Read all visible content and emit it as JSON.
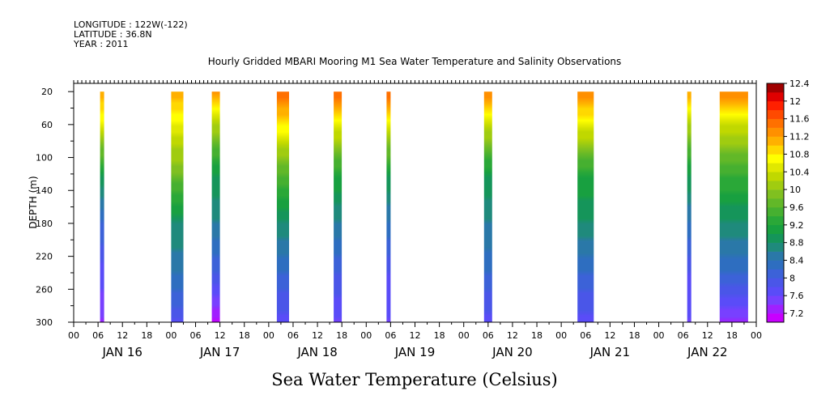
{
  "header": {
    "longitude": "LONGITUDE : 122W(-122)",
    "latitude": "LATITUDE : 36.8N",
    "year": "YEAR : 2011"
  },
  "chart_data": {
    "type": "heatmap",
    "title": "Hourly Gridded MBARI Mooring M1 Sea Water Temperature and Salinity Observations",
    "xlabel": "Sea Water Temperature (Celsius)",
    "ylabel": "DEPTH (m)",
    "y_ticks": [
      20,
      60,
      100,
      140,
      180,
      220,
      260,
      300
    ],
    "ylim": [
      300,
      10
    ],
    "x_range_hours": [
      0,
      168
    ],
    "x_hour_ticks": [
      "00",
      "06",
      "12",
      "18",
      "00",
      "06",
      "12",
      "18",
      "00",
      "06",
      "12",
      "18",
      "00",
      "06",
      "12",
      "18",
      "00",
      "06",
      "12",
      "18",
      "00",
      "06",
      "12",
      "18",
      "00",
      "06",
      "12",
      "18",
      "00"
    ],
    "x_day_labels": [
      "JAN 16",
      "JAN 17",
      "JAN 18",
      "JAN 19",
      "JAN 20",
      "JAN 21",
      "JAN 22"
    ],
    "colorbar": {
      "levels": [
        7.2,
        7.4,
        7.6,
        7.8,
        8.0,
        8.2,
        8.4,
        8.6,
        8.8,
        9.0,
        9.2,
        9.4,
        9.6,
        9.8,
        10.0,
        10.2,
        10.4,
        10.6,
        10.8,
        11.0,
        11.2,
        11.4,
        11.6,
        11.8,
        12.0,
        12.2,
        12.4
      ],
      "labels": [
        "12.4",
        "12",
        "11.6",
        "11.2",
        "10.8",
        "10.4",
        "10",
        "9.6",
        "9.2",
        "8.8",
        "8.4",
        "8",
        "7.6",
        "7.2"
      ],
      "colors": [
        "#c800ff",
        "#a020ff",
        "#7840ff",
        "#5a4cf8",
        "#4a56e8",
        "#3c62d8",
        "#2e6ec0",
        "#2a78a8",
        "#1f8a7c",
        "#15955a",
        "#18a040",
        "#2aa838",
        "#46b030",
        "#62b828",
        "#80c020",
        "#a0cc10",
        "#c0d800",
        "#e0e800",
        "#ffff00",
        "#ffd800",
        "#ffb000",
        "#ff9000",
        "#ff7000",
        "#ff4a00",
        "#ff2000",
        "#e00000",
        "#a00000"
      ]
    },
    "series": [
      {
        "start_hour": 6.5,
        "end_hour": 7.5,
        "top": [
          11.4,
          10.8,
          9.2,
          8.4,
          7.9,
          7.6
        ]
      },
      {
        "start_hour": 24.0,
        "end_hour": 27.0,
        "top": [
          11.4,
          10.8,
          10.0,
          9.0,
          8.6,
          8.0
        ]
      },
      {
        "start_hour": 34.0,
        "end_hour": 36.0,
        "top": [
          11.6,
          10.4,
          9.2,
          8.8,
          8.2,
          7.3
        ]
      },
      {
        "start_hour": 50.0,
        "end_hour": 53.0,
        "top": [
          11.8,
          11.0,
          9.8,
          9.0,
          8.4,
          7.9
        ]
      },
      {
        "start_hour": 64.0,
        "end_hour": 66.0,
        "top": [
          11.8,
          10.8,
          9.4,
          8.8,
          8.2,
          7.8
        ]
      },
      {
        "start_hour": 77.0,
        "end_hour": 78.0,
        "top": [
          11.8,
          10.8,
          9.2,
          8.6,
          8.0,
          7.8
        ]
      },
      {
        "start_hour": 101.0,
        "end_hour": 103.0,
        "top": [
          11.6,
          10.6,
          9.2,
          8.8,
          8.4,
          7.9
        ]
      },
      {
        "start_hour": 124.0,
        "end_hour": 128.0,
        "top": [
          11.6,
          10.8,
          9.4,
          9.0,
          8.4,
          7.9
        ]
      },
      {
        "start_hour": 151.0,
        "end_hour": 152.0,
        "top": [
          11.4,
          10.4,
          9.2,
          8.6,
          8.0,
          7.8
        ]
      },
      {
        "start_hour": 159.0,
        "end_hour": 166.0,
        "top": [
          11.6,
          10.6,
          9.6,
          9.0,
          8.4,
          7.6
        ]
      }
    ]
  }
}
